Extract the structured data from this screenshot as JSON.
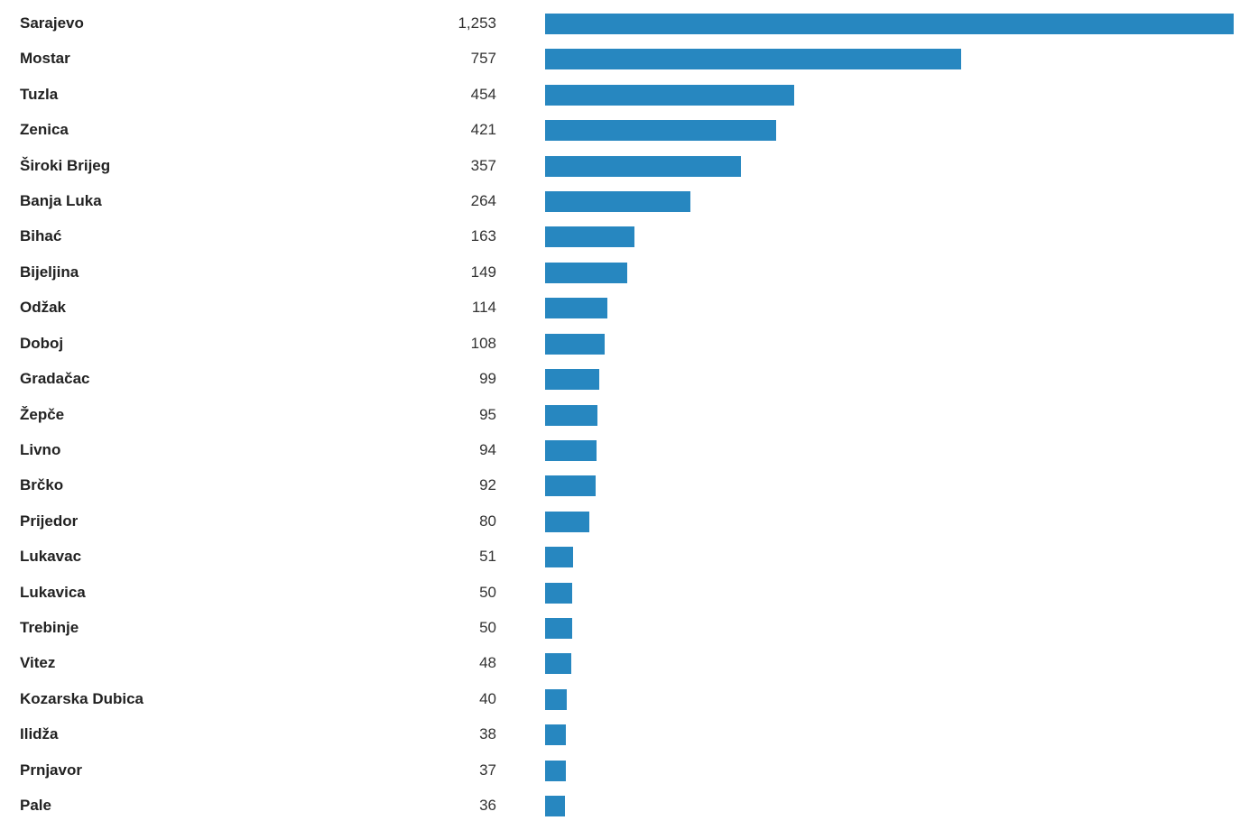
{
  "colors": {
    "bar": "#2787c0"
  },
  "chart_data": {
    "type": "bar",
    "orientation": "horizontal",
    "categories": [
      "Sarajevo",
      "Mostar",
      "Tuzla",
      "Zenica",
      "Široki Brijeg",
      "Banja Luka",
      "Bihać",
      "Bijeljina",
      "Odžak",
      "Doboj",
      "Gradačac",
      "Žepče",
      "Livno",
      "Brčko",
      "Prijedor",
      "Lukavac",
      "Lukavica",
      "Trebinje",
      "Vitez",
      "Kozarska Dubica",
      "Ilidža",
      "Prnjavor",
      "Pale"
    ],
    "values": [
      1253,
      757,
      454,
      421,
      357,
      264,
      163,
      149,
      114,
      108,
      99,
      95,
      94,
      92,
      80,
      51,
      50,
      50,
      48,
      40,
      38,
      37,
      36
    ],
    "value_labels": [
      "1,253",
      "757",
      "454",
      "421",
      "357",
      "264",
      "163",
      "149",
      "114",
      "108",
      "99",
      "95",
      "94",
      "92",
      "80",
      "51",
      "50",
      "50",
      "48",
      "40",
      "38",
      "37",
      "36"
    ],
    "xlim": [
      0,
      1253
    ],
    "grid": false,
    "legend": "none"
  }
}
